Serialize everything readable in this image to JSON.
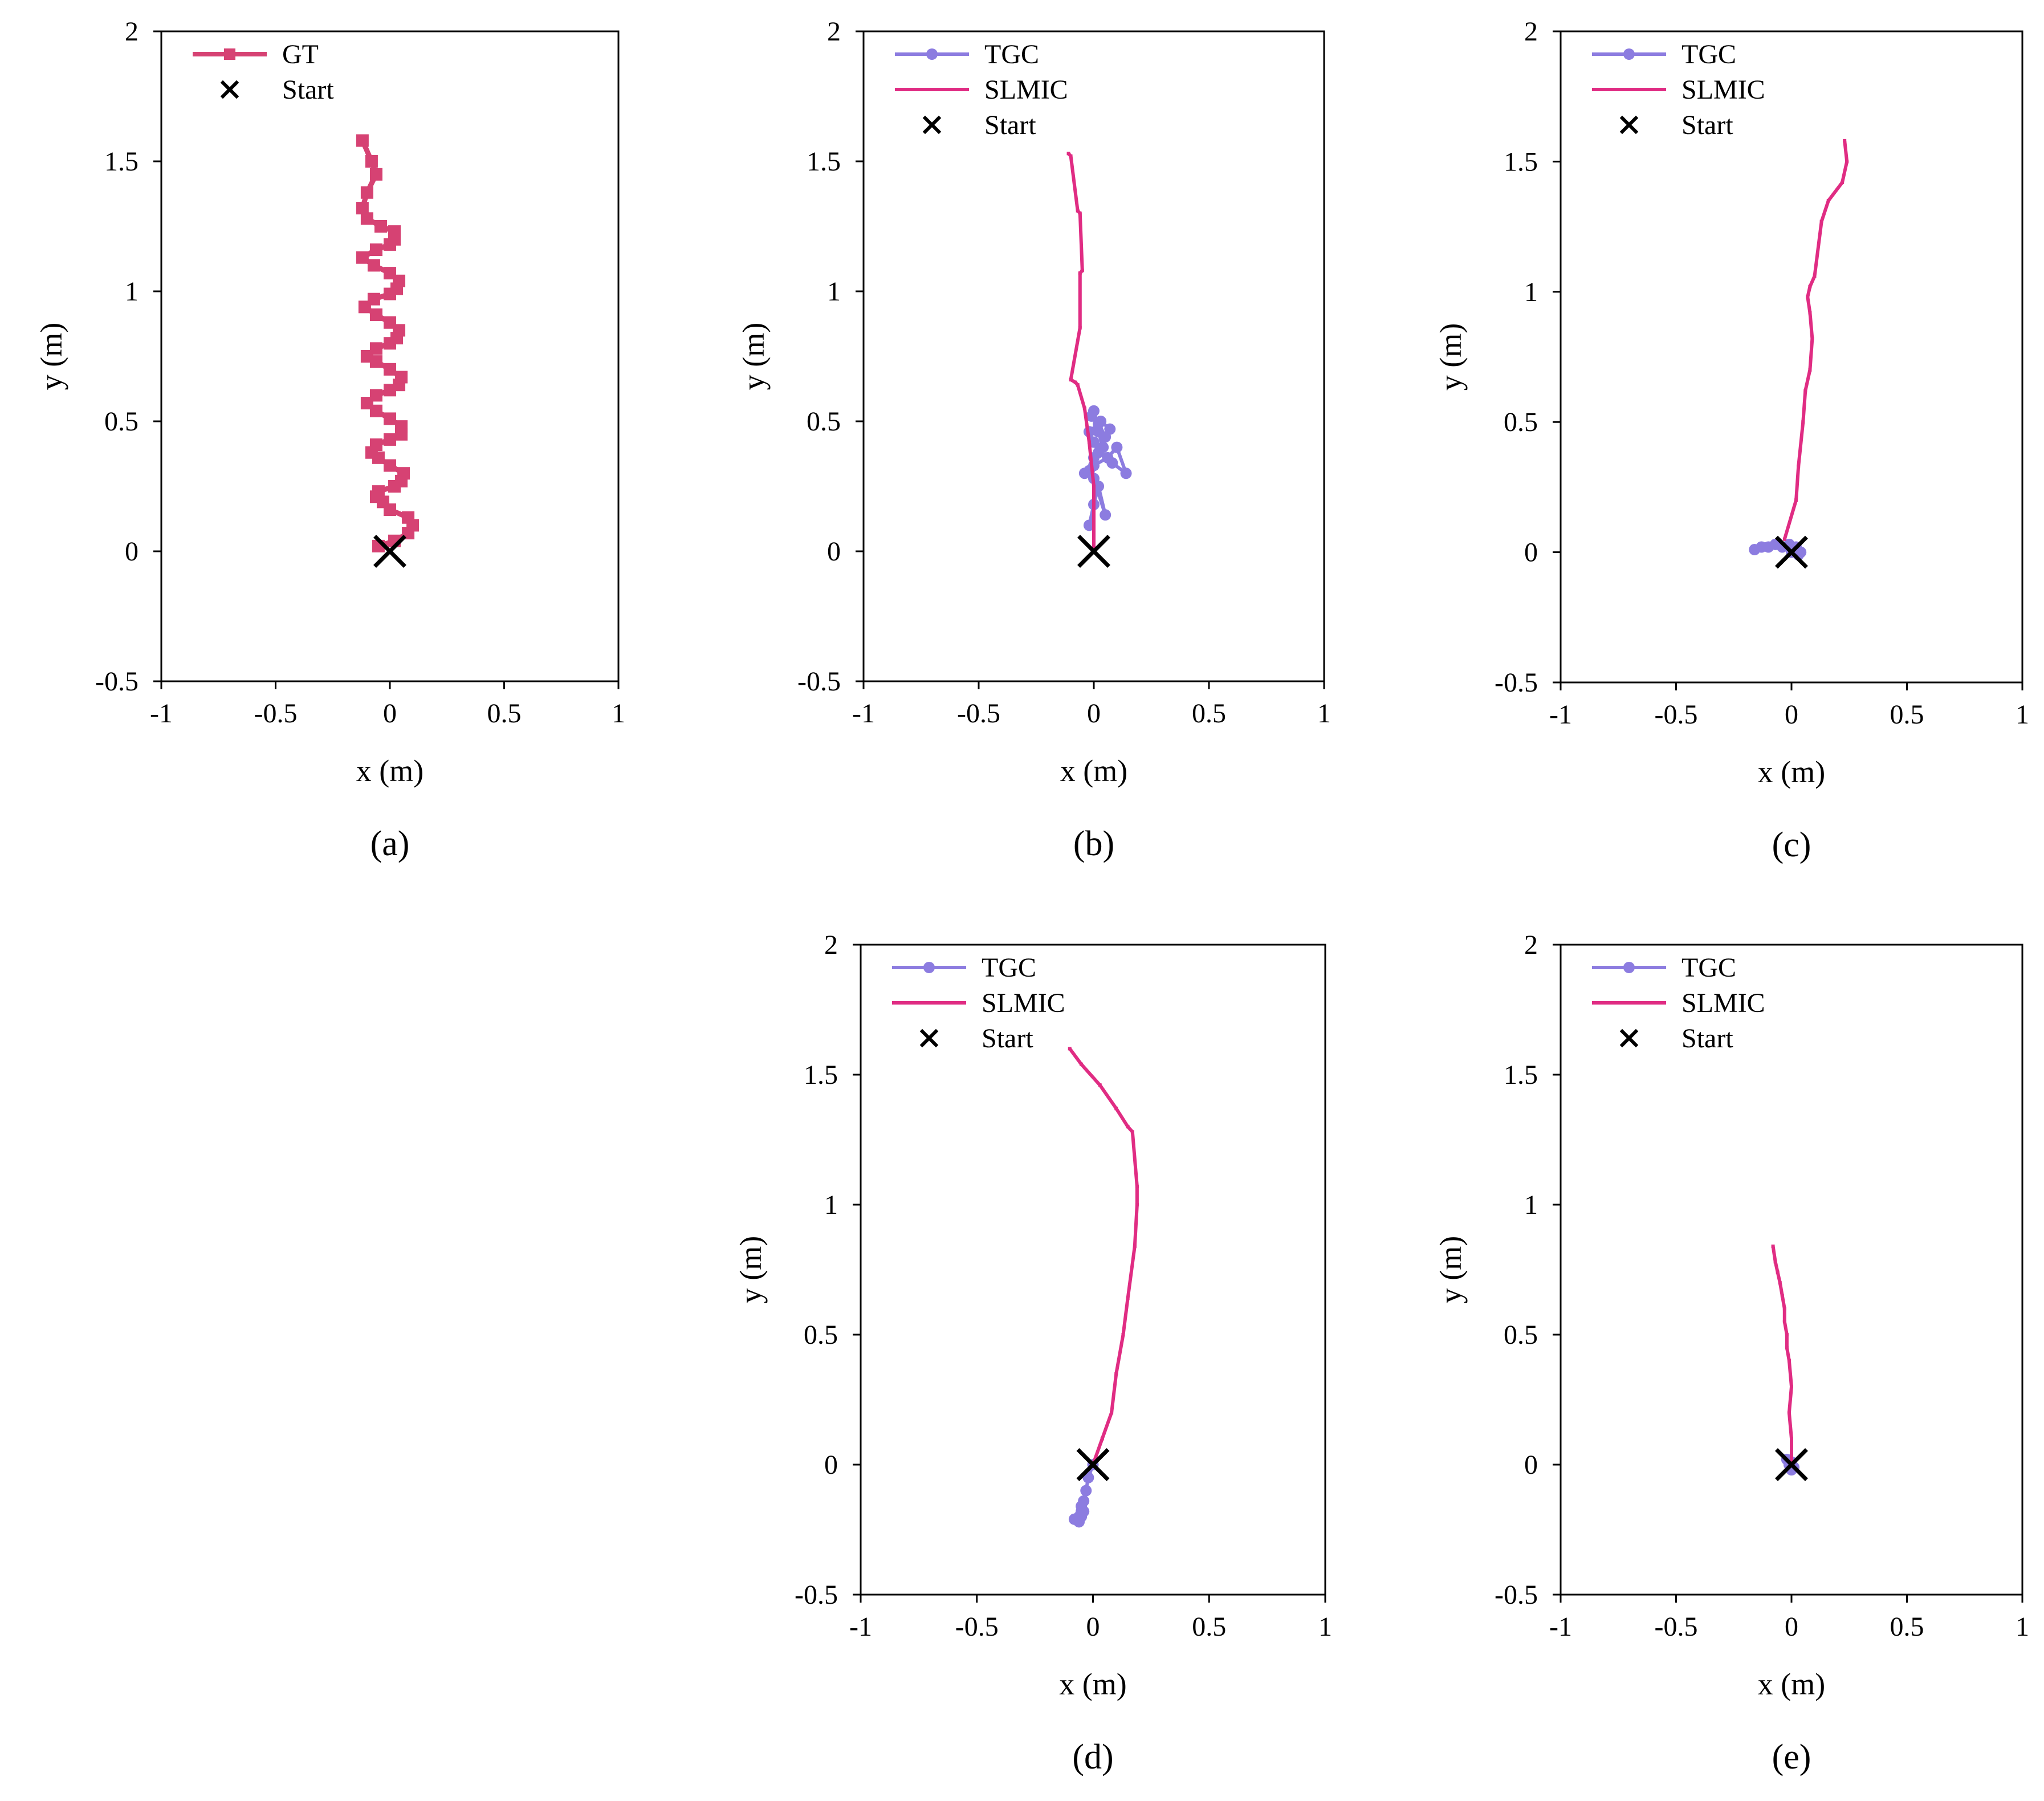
{
  "figure": {
    "panels": [
      "a",
      "b",
      "c",
      "d",
      "e"
    ]
  },
  "colors": {
    "gt": "#d64273",
    "tgc": "#8c7ce0",
    "slmic": "#e02c83",
    "start": "#000000",
    "axis": "#000000"
  },
  "chart_data": [
    {
      "id": "a",
      "type": "line",
      "panel_label": "(a)",
      "xlabel": "x (m)",
      "ylabel": "y (m)",
      "xlim": [
        -1,
        1
      ],
      "ylim": [
        -0.5,
        2
      ],
      "xticks": [
        "-1",
        "-0.5",
        "0",
        "0.5",
        "1"
      ],
      "yticks": [
        "-0.5",
        "0",
        "0.5",
        "1",
        "1.5",
        "2"
      ],
      "legend": [
        "GT",
        "Start"
      ],
      "series": [
        {
          "name": "GT",
          "color": "#d64273",
          "marker": "square",
          "x": [
            -0.05,
            0.02,
            0.08,
            0.1,
            0.08,
            0.0,
            -0.03,
            -0.06,
            -0.05,
            0.02,
            0.05,
            0.06,
            0.0,
            -0.05,
            -0.08,
            -0.06,
            0.0,
            0.05,
            0.05,
            0.0,
            -0.06,
            -0.1,
            -0.06,
            0.0,
            0.04,
            0.05,
            0.0,
            -0.06,
            -0.1,
            -0.06,
            0.0,
            0.03,
            0.04,
            0.0,
            -0.06,
            -0.11,
            -0.07,
            0.0,
            0.03,
            0.04,
            0.0,
            -0.07,
            -0.12,
            -0.06,
            0.0,
            0.02,
            0.02,
            -0.04,
            -0.1,
            -0.12,
            -0.1,
            -0.06,
            -0.08,
            -0.12
          ],
          "y": [
            0.02,
            0.04,
            0.07,
            0.1,
            0.13,
            0.16,
            0.19,
            0.21,
            0.23,
            0.25,
            0.27,
            0.3,
            0.33,
            0.36,
            0.38,
            0.41,
            0.43,
            0.45,
            0.48,
            0.51,
            0.54,
            0.57,
            0.6,
            0.62,
            0.64,
            0.67,
            0.7,
            0.73,
            0.75,
            0.78,
            0.8,
            0.82,
            0.85,
            0.88,
            0.91,
            0.94,
            0.97,
            0.99,
            1.01,
            1.04,
            1.07,
            1.1,
            1.13,
            1.16,
            1.18,
            1.2,
            1.23,
            1.25,
            1.28,
            1.32,
            1.38,
            1.45,
            1.5,
            1.58
          ]
        },
        {
          "name": "Start",
          "x": [
            0
          ],
          "y": [
            0
          ],
          "marker": "x"
        }
      ]
    },
    {
      "id": "b",
      "type": "line",
      "panel_label": "(b)",
      "xlabel": "x (m)",
      "ylabel": "y (m)",
      "xlim": [
        -1,
        1
      ],
      "ylim": [
        -0.5,
        2
      ],
      "xticks": [
        "-1",
        "-0.5",
        "0",
        "0.5",
        "1"
      ],
      "yticks": [
        "-0.5",
        "0",
        "0.5",
        "1",
        "1.5",
        "2"
      ],
      "legend": [
        "TGC",
        "SLMIC",
        "Start"
      ],
      "series": [
        {
          "name": "TGC",
          "color": "#8c7ce0",
          "marker": "circle",
          "x": [
            -0.02,
            0.0,
            0.02,
            0.05,
            0.0,
            -0.04,
            0.0,
            0.06,
            0.1,
            0.14,
            0.08,
            0.02,
            0.0,
            -0.02,
            0.02,
            0.05,
            0.07,
            0.03,
            -0.01,
            0.0,
            0.02,
            0.04,
            0.0,
            -0.02
          ],
          "y": [
            0.1,
            0.18,
            0.25,
            0.14,
            0.28,
            0.3,
            0.33,
            0.36,
            0.4,
            0.3,
            0.34,
            0.38,
            0.42,
            0.46,
            0.49,
            0.44,
            0.47,
            0.5,
            0.52,
            0.54,
            0.46,
            0.4,
            0.36,
            0.31
          ]
        },
        {
          "name": "SLMIC",
          "color": "#e02c83",
          "marker": "none",
          "x": [
            0.0,
            0.0,
            -0.02,
            -0.04,
            -0.07,
            -0.08,
            -0.1,
            -0.06,
            -0.06,
            -0.05,
            -0.06,
            -0.07,
            -0.1,
            -0.11
          ],
          "y": [
            0.0,
            0.25,
            0.42,
            0.55,
            0.64,
            0.65,
            0.66,
            0.86,
            1.07,
            1.08,
            1.3,
            1.31,
            1.52,
            1.53
          ]
        },
        {
          "name": "Start",
          "x": [
            0
          ],
          "y": [
            0
          ],
          "marker": "x"
        }
      ]
    },
    {
      "id": "c",
      "type": "line",
      "panel_label": "(c)",
      "xlabel": "x (m)",
      "ylabel": "y (m)",
      "xlim": [
        -1,
        1
      ],
      "ylim": [
        -0.5,
        2
      ],
      "xticks": [
        "-1",
        "-0.5",
        "0",
        "0.5",
        "1"
      ],
      "yticks": [
        "-0.5",
        "0",
        "0.5",
        "1",
        "1.5",
        "2"
      ],
      "legend": [
        "TGC",
        "SLMIC",
        "Start"
      ],
      "series": [
        {
          "name": "TGC",
          "color": "#8c7ce0",
          "marker": "circle",
          "x": [
            -0.16,
            -0.13,
            -0.1,
            -0.07,
            -0.04,
            -0.01,
            0.02,
            0.04,
            0.03,
            0.0
          ],
          "y": [
            0.01,
            0.02,
            0.02,
            0.03,
            0.02,
            0.03,
            0.02,
            0.0,
            -0.01,
            0.0
          ]
        },
        {
          "name": "SLMIC",
          "color": "#e02c83",
          "marker": "none",
          "x": [
            -0.03,
            0.02,
            0.03,
            0.05,
            0.06,
            0.08,
            0.09,
            0.08,
            0.07,
            0.08,
            0.1,
            0.13,
            0.16,
            0.22,
            0.24,
            0.23
          ],
          "y": [
            0.05,
            0.2,
            0.33,
            0.5,
            0.62,
            0.7,
            0.82,
            0.92,
            0.98,
            1.02,
            1.06,
            1.27,
            1.35,
            1.42,
            1.5,
            1.58
          ]
        },
        {
          "name": "Start",
          "x": [
            0
          ],
          "y": [
            0
          ],
          "marker": "x"
        }
      ]
    },
    {
      "id": "d",
      "type": "line",
      "panel_label": "(d)",
      "xlabel": "x (m)",
      "ylabel": "y (m)",
      "xlim": [
        -1,
        1
      ],
      "ylim": [
        -0.5,
        2
      ],
      "xticks": [
        "-1",
        "-0.5",
        "0",
        "0.5",
        "1"
      ],
      "yticks": [
        "-0.5",
        "0",
        "0.5",
        "1",
        "1.5",
        "2"
      ],
      "legend": [
        "TGC",
        "SLMIC",
        "Start"
      ],
      "series": [
        {
          "name": "TGC",
          "color": "#8c7ce0",
          "marker": "circle",
          "x": [
            0.0,
            -0.02,
            -0.03,
            -0.04,
            -0.05,
            -0.05,
            -0.06,
            -0.07,
            -0.08,
            -0.06,
            -0.05,
            -0.04
          ],
          "y": [
            0.0,
            -0.05,
            -0.1,
            -0.14,
            -0.16,
            -0.18,
            -0.2,
            -0.21,
            -0.21,
            -0.22,
            -0.2,
            -0.18
          ]
        },
        {
          "name": "SLMIC",
          "color": "#e02c83",
          "marker": "none",
          "x": [
            0.0,
            0.04,
            0.08,
            0.1,
            0.13,
            0.15,
            0.18,
            0.19,
            0.19,
            0.17,
            0.15,
            0.1,
            0.03,
            -0.05,
            -0.1
          ],
          "y": [
            0.0,
            0.1,
            0.2,
            0.35,
            0.5,
            0.64,
            0.84,
            1.0,
            1.07,
            1.28,
            1.3,
            1.37,
            1.46,
            1.54,
            1.6
          ]
        },
        {
          "name": "Start",
          "x": [
            0
          ],
          "y": [
            0
          ],
          "marker": "x"
        }
      ]
    },
    {
      "id": "e",
      "type": "line",
      "panel_label": "(e)",
      "xlabel": "x (m)",
      "ylabel": "y (m)",
      "xlim": [
        -1,
        1
      ],
      "ylim": [
        -0.5,
        2
      ],
      "xticks": [
        "-1",
        "-0.5",
        "0",
        "0.5",
        "1"
      ],
      "yticks": [
        "-0.5",
        "0",
        "0.5",
        "1",
        "1.5",
        "2"
      ],
      "legend": [
        "TGC",
        "SLMIC",
        "Start"
      ],
      "series": [
        {
          "name": "TGC",
          "color": "#8c7ce0",
          "marker": "circle",
          "x": [
            -0.02,
            0.0,
            0.01,
            0.0,
            -0.01
          ],
          "y": [
            0.02,
            0.01,
            -0.01,
            -0.02,
            0.0
          ]
        },
        {
          "name": "SLMIC",
          "color": "#e02c83",
          "marker": "none",
          "x": [
            0.0,
            0.0,
            -0.01,
            0.0,
            -0.01,
            -0.02,
            -0.02,
            -0.03,
            -0.03,
            -0.04,
            -0.05,
            -0.06,
            -0.07,
            -0.08
          ],
          "y": [
            0.0,
            0.1,
            0.2,
            0.3,
            0.4,
            0.45,
            0.5,
            0.55,
            0.6,
            0.65,
            0.7,
            0.74,
            0.78,
            0.84
          ]
        },
        {
          "name": "Start",
          "x": [
            0
          ],
          "y": [
            0
          ],
          "marker": "x"
        }
      ]
    }
  ]
}
